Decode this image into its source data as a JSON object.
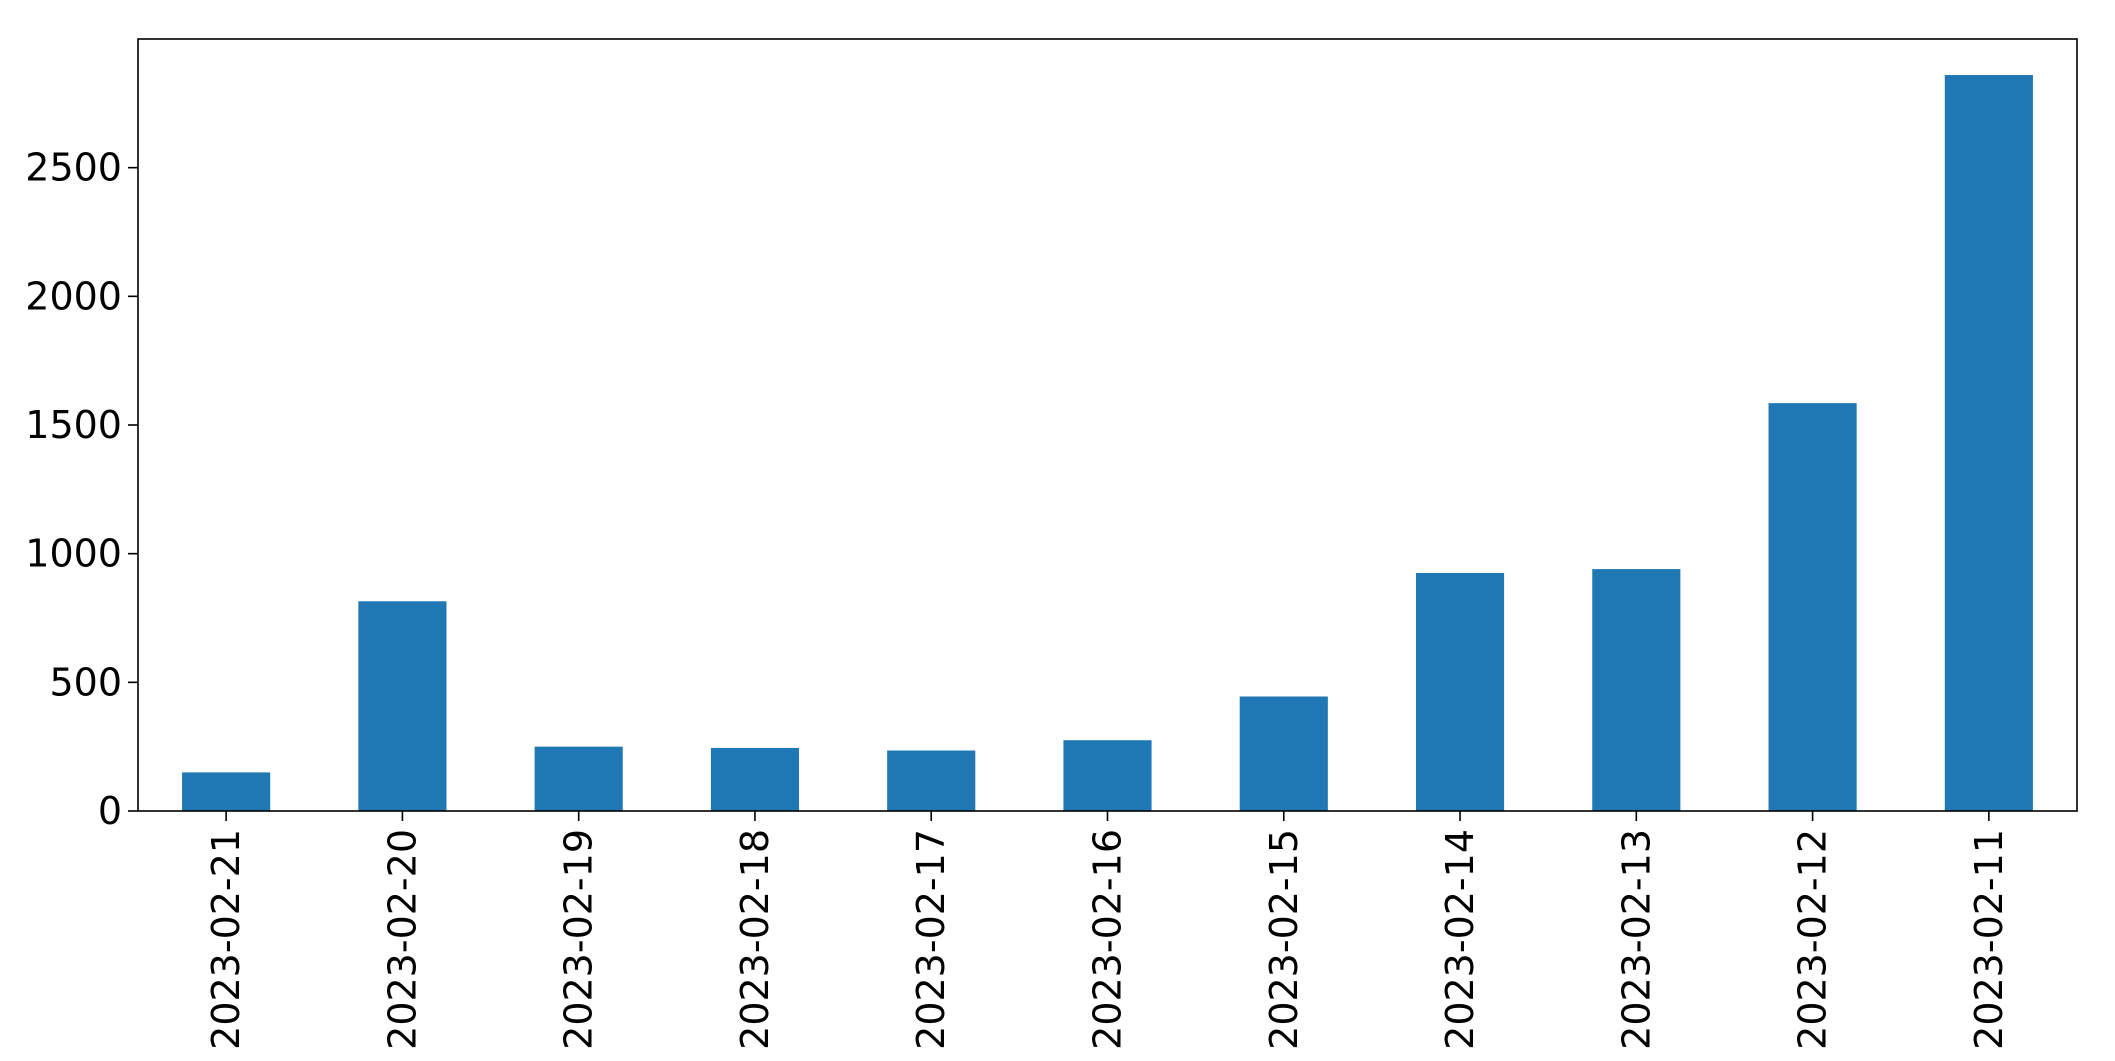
{
  "chart_data": {
    "type": "bar",
    "title": "",
    "xlabel": "",
    "ylabel": "",
    "categories": [
      "2023-02-21",
      "2023-02-20",
      "2023-02-19",
      "2023-02-18",
      "2023-02-17",
      "2023-02-16",
      "2023-02-15",
      "2023-02-14",
      "2023-02-13",
      "2023-02-12",
      "2023-02-11"
    ],
    "values": [
      150,
      815,
      250,
      245,
      235,
      275,
      445,
      925,
      940,
      1585,
      2860
    ],
    "ylim": [
      0,
      3000
    ],
    "yticks": [
      0,
      500,
      1000,
      1500,
      2000,
      2500
    ],
    "ytick_labels": [
      "0",
      "500",
      "1000",
      "1500",
      "2000",
      "2500"
    ],
    "xtick_rotation": "vertical",
    "bar_color": "#1f77b4",
    "grid": false,
    "legend": "none"
  }
}
